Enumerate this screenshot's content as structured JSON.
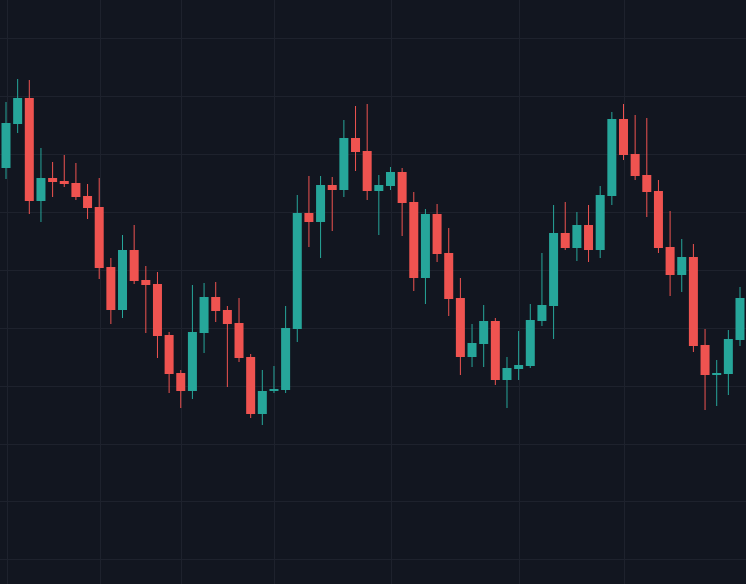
{
  "chart_data": {
    "type": "candlestick",
    "title": "",
    "xlabel": "",
    "ylabel": "",
    "ylim": [
      3.2,
      120
    ],
    "grid": true,
    "colors": {
      "background": "#121620",
      "grid": "#1e222d",
      "up": "#26a69a",
      "down": "#ef5350"
    },
    "ohlc_order": [
      "open",
      "high",
      "low",
      "close"
    ],
    "candles": [
      [
        86.4,
        99.6,
        84.2,
        95.4
      ],
      [
        95.2,
        104.2,
        93.4,
        100.4
      ],
      [
        100.4,
        104,
        77.2,
        79.8
      ],
      [
        79.8,
        90.4,
        75.6,
        84.4
      ],
      [
        84.4,
        87.6,
        80.6,
        83.6
      ],
      [
        83.8,
        89,
        82.6,
        83.2
      ],
      [
        83.4,
        87.4,
        80,
        80.6
      ],
      [
        80.8,
        83.2,
        76.2,
        78.4
      ],
      [
        78.6,
        84.4,
        64.2,
        66.4
      ],
      [
        66.6,
        68.4,
        55.2,
        58
      ],
      [
        58,
        73,
        56.4,
        70
      ],
      [
        70,
        75,
        63.2,
        63.8
      ],
      [
        64,
        66.8,
        53.4,
        63
      ],
      [
        63.2,
        65.6,
        48.4,
        52.8
      ],
      [
        53,
        53.6,
        41.4,
        45.2
      ],
      [
        45.4,
        46,
        38.4,
        41.8
      ],
      [
        41.8,
        63,
        40.2,
        53.6
      ],
      [
        53.4,
        63.4,
        49.4,
        60.6
      ],
      [
        60.6,
        63.6,
        55.6,
        57.8
      ],
      [
        58,
        58.8,
        42.6,
        55.2
      ],
      [
        55.4,
        60.4,
        47.6,
        48.4
      ],
      [
        48.6,
        49.2,
        36.4,
        37.2
      ],
      [
        37.2,
        46,
        35,
        41.8
      ],
      [
        41.8,
        46.8,
        41.4,
        42.2
      ],
      [
        42,
        58.8,
        41.4,
        54.4
      ],
      [
        54.2,
        81,
        51.6,
        77.4
      ],
      [
        77.4,
        84.8,
        70.6,
        75.6
      ],
      [
        75.6,
        84.8,
        68.4,
        83
      ],
      [
        83,
        84.6,
        73.8,
        82
      ],
      [
        82,
        96,
        80.6,
        92.4
      ],
      [
        92.4,
        98.8,
        85.8,
        89.6
      ],
      [
        89.8,
        99.2,
        80,
        81.8
      ],
      [
        81.8,
        85,
        73,
        83
      ],
      [
        82.8,
        86.6,
        82,
        85.6
      ],
      [
        85.6,
        86.4,
        72.8,
        79.4
      ],
      [
        79.6,
        81.6,
        61.8,
        64.4
      ],
      [
        64.4,
        78.2,
        59.2,
        77.2
      ],
      [
        77.2,
        79.2,
        67.6,
        69.2
      ],
      [
        69.4,
        74.4,
        56.8,
        60.2
      ],
      [
        60.4,
        64.4,
        45,
        48.6
      ],
      [
        48.6,
        55.2,
        46.6,
        51.4
      ],
      [
        51.2,
        59,
        46.6,
        55.8
      ],
      [
        55.8,
        56.4,
        43,
        44
      ],
      [
        44,
        48.6,
        38.4,
        46.4
      ],
      [
        46.2,
        53.8,
        44,
        47
      ],
      [
        46.8,
        59.2,
        46.4,
        56
      ],
      [
        55.8,
        69.4,
        54.8,
        59
      ],
      [
        58.8,
        79,
        52.2,
        73.4
      ],
      [
        73.4,
        79.6,
        70,
        70.4
      ],
      [
        70.4,
        77.6,
        67.8,
        75
      ],
      [
        75,
        79,
        67.6,
        70
      ],
      [
        70,
        82.8,
        68.4,
        81
      ],
      [
        80.8,
        97.6,
        79,
        96.2
      ],
      [
        96.2,
        99.2,
        88,
        89
      ],
      [
        89.2,
        97,
        84,
        84.8
      ],
      [
        85,
        96.4,
        76.6,
        81.6
      ],
      [
        81.8,
        84,
        69.4,
        70.4
      ],
      [
        70.6,
        77.8,
        60.8,
        65
      ],
      [
        65,
        72.2,
        61.6,
        68.6
      ],
      [
        68.6,
        71.2,
        49.6,
        50.8
      ],
      [
        51,
        54.2,
        38,
        45
      ],
      [
        45,
        48,
        38.8,
        45.4
      ],
      [
        45.2,
        54,
        41,
        52.2
      ],
      [
        52,
        62.6,
        50.8,
        60.4
      ]
    ]
  }
}
